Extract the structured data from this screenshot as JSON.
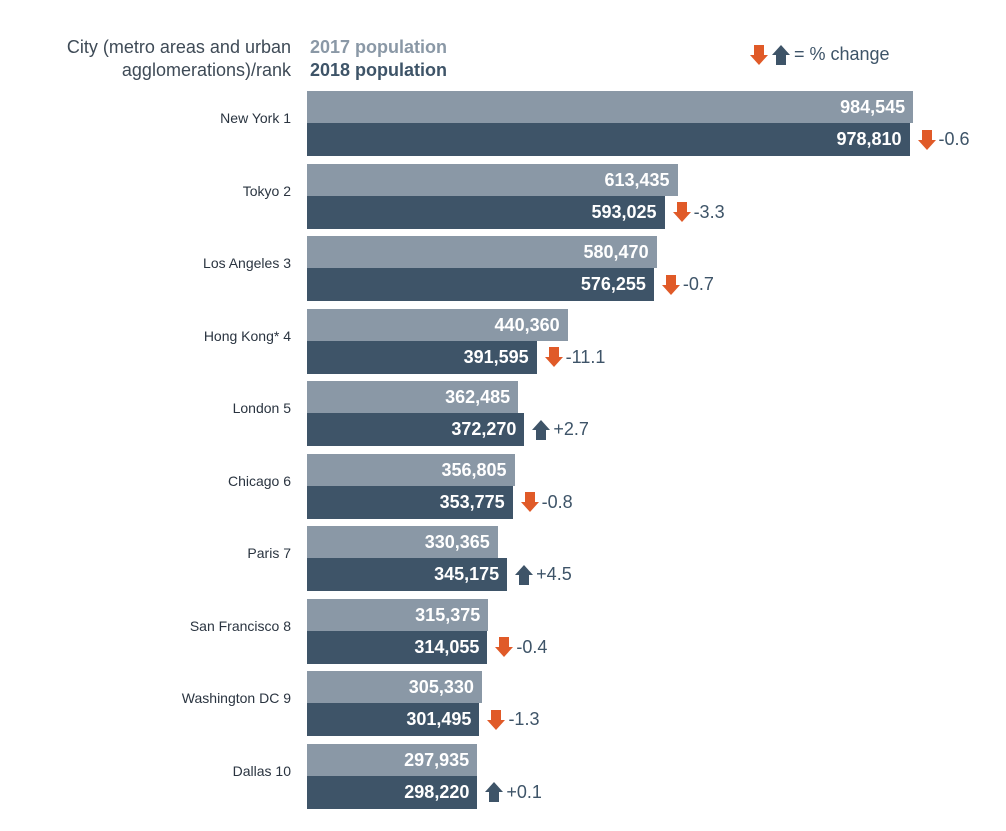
{
  "colors": {
    "y2017": "#8a98a6",
    "y2018": "#3e5468",
    "down": "#e05a28",
    "up": "#3e5468"
  },
  "chart_data": {
    "type": "bar",
    "orientation": "horizontal",
    "header": {
      "city": "City (metro areas and urban agglomerations)/rank",
      "series1": "2017 population",
      "series2": "2018 population",
      "legend": "= % change"
    },
    "categories": [
      "New York  1",
      "Tokyo  2",
      "Los Angeles 3",
      "Hong Kong*  4",
      "London  5",
      "Chicago  6",
      "Paris  7",
      "San Francisco  8",
      "Washington DC  9",
      "Dallas  10"
    ],
    "series": [
      {
        "name": "2017 population",
        "values": [
          984545,
          613435,
          580470,
          440360,
          362485,
          356805,
          330365,
          315375,
          305330,
          297935
        ],
        "labels": [
          "984,545",
          "613,435",
          "580,470",
          "440,360",
          "362,485",
          "356,805",
          "330,365",
          "315,375",
          "305,330",
          "297,935"
        ]
      },
      {
        "name": "2018 population",
        "values": [
          978810,
          593025,
          576255,
          391595,
          372270,
          353775,
          345175,
          314055,
          301495,
          298220
        ],
        "labels": [
          "978,810",
          "593,025",
          "576,255",
          "391,595",
          "372,270",
          "353,775",
          "345,175",
          "314,055",
          "301,495",
          "298,220"
        ]
      }
    ],
    "change": [
      "-0.6",
      "-3.3",
      "-0.7",
      "-11.1",
      "+2.7",
      "-0.8",
      "+4.5",
      "-0.4",
      "-1.3",
      "+0.1"
    ]
  }
}
